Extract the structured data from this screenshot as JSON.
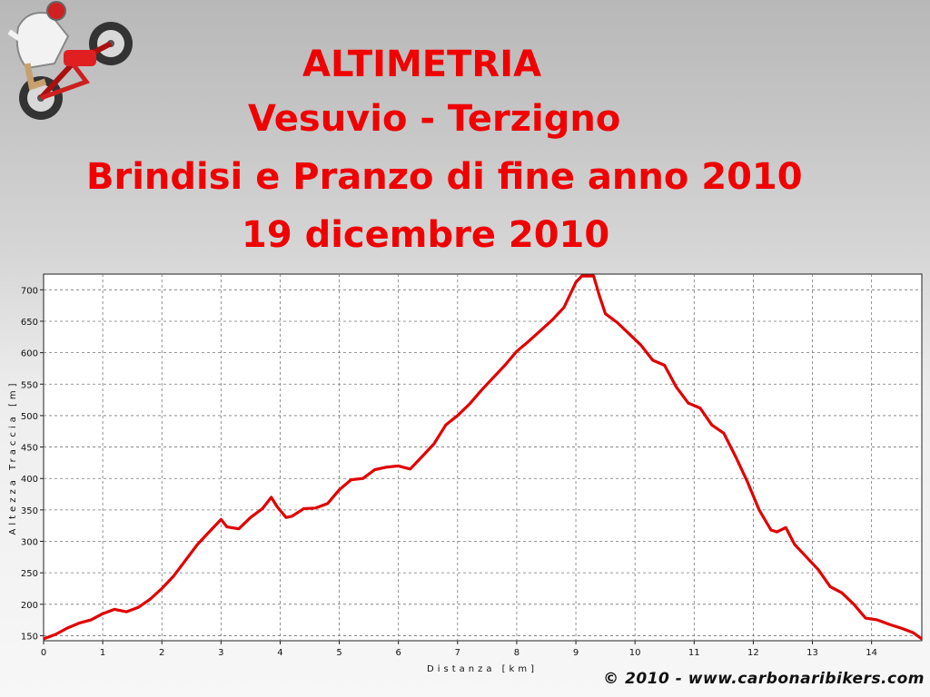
{
  "header": {
    "title_line1": "ALTIMETRIA",
    "title_line2": "Vesuvio - Terzigno",
    "title_line3": "Brindisi e Pranzo di fine anno 2010",
    "title_line4": "19 dicembre 2010"
  },
  "footer": {
    "copyright": "© 2010 - www.carbonaribikers.com"
  },
  "logo": {
    "icon": "motorcycle-rider-icon"
  },
  "colors": {
    "title": "#f00000",
    "profile_line": "#e00000",
    "grid": "#777777"
  },
  "chart_data": {
    "type": "line",
    "xlabel": "Distanza [km]",
    "ylabel": "Altezza Traccia [m]",
    "xlim": [
      0,
      14.85
    ],
    "ylim": [
      142,
      725
    ],
    "x_ticks": [
      0,
      1,
      2,
      3,
      4,
      5,
      6,
      7,
      8,
      9,
      10,
      11,
      12,
      13,
      14
    ],
    "y_ticks": [
      150,
      200,
      250,
      300,
      350,
      400,
      450,
      500,
      550,
      600,
      650,
      700
    ],
    "grid": true,
    "series": [
      {
        "x": [
          0,
          0.2,
          0.4,
          0.6,
          0.8,
          1.0,
          1.2,
          1.4,
          1.6,
          1.8,
          2.0,
          2.2,
          2.4,
          2.6,
          2.8,
          3.0,
          3.1,
          3.3,
          3.5,
          3.7,
          3.85,
          3.95,
          4.1,
          4.2,
          4.4,
          4.6,
          4.8,
          5.0,
          5.2,
          5.4,
          5.6,
          5.8,
          6.0,
          6.2,
          6.4,
          6.6,
          6.8,
          7.0,
          7.2,
          7.4,
          7.6,
          7.8,
          8.0,
          8.2,
          8.4,
          8.6,
          8.8,
          9.0,
          9.1,
          9.3,
          9.4,
          9.5,
          9.7,
          9.9,
          10.1,
          10.3,
          10.5,
          10.7,
          10.9,
          11.1,
          11.3,
          11.5,
          11.7,
          11.9,
          12.1,
          12.3,
          12.4,
          12.55,
          12.7,
          12.9,
          13.1,
          13.3,
          13.5,
          13.7,
          13.9,
          14.1,
          14.3,
          14.5,
          14.7,
          14.85
        ],
        "y": [
          145,
          152,
          162,
          170,
          175,
          185,
          192,
          188,
          195,
          208,
          225,
          245,
          270,
          295,
          315,
          335,
          323,
          320,
          338,
          352,
          370,
          355,
          338,
          340,
          352,
          353,
          360,
          382,
          398,
          400,
          414,
          418,
          420,
          415,
          435,
          455,
          485,
          500,
          518,
          540,
          560,
          580,
          602,
          618,
          635,
          652,
          672,
          712,
          722,
          722,
          690,
          662,
          648,
          630,
          612,
          588,
          580,
          545,
          520,
          512,
          485,
          472,
          435,
          395,
          350,
          318,
          315,
          322,
          295,
          275,
          255,
          228,
          218,
          200,
          178,
          175,
          168,
          162,
          155,
          145
        ]
      }
    ]
  }
}
